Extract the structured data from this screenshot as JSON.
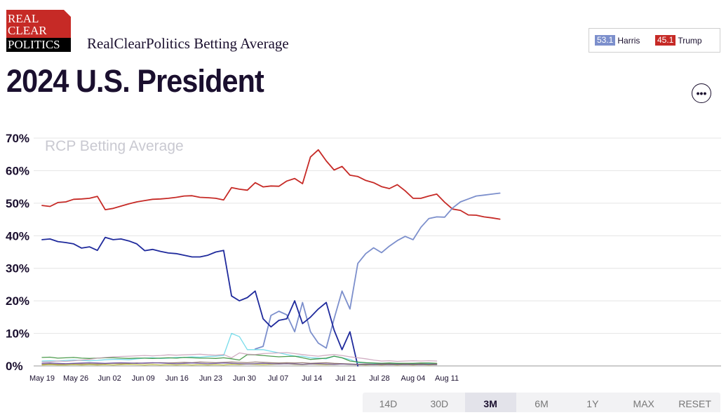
{
  "header": {
    "logo_line1": "REAL",
    "logo_line2": "CLEAR",
    "logo_line3": "POLITICS",
    "subtitle": "RealClearPolitics Betting Average",
    "title": "2024 U.S. President"
  },
  "legend": [
    {
      "value": "53.1",
      "name": "Harris",
      "color": "#7c8fcc"
    },
    {
      "value": "45.1",
      "name": "Trump",
      "color": "#c62a26"
    }
  ],
  "menu_icon": "more-horizontal-icon",
  "range_buttons": [
    {
      "label": "14D",
      "active": false
    },
    {
      "label": "30D",
      "active": false
    },
    {
      "label": "3M",
      "active": true
    },
    {
      "label": "6M",
      "active": false
    },
    {
      "label": "1Y",
      "active": false
    },
    {
      "label": "MAX",
      "active": false
    },
    {
      "label": "RESET",
      "active": false
    }
  ],
  "chart_data": {
    "type": "line",
    "watermark": "RCP Betting Average",
    "ylim": [
      0,
      70
    ],
    "yticks": [
      "0%",
      "10%",
      "20%",
      "30%",
      "40%",
      "50%",
      "60%",
      "70%"
    ],
    "xticks": [
      "May 19",
      "May 26",
      "Jun 02",
      "Jun 09",
      "Jun 16",
      "Jun 23",
      "Jun 30",
      "Jul 07",
      "Jul 14",
      "Jul 21",
      "Jul 28",
      "Aug 04",
      "Aug 11"
    ],
    "x_start": "May 19",
    "grid": true,
    "series": [
      {
        "name": "Trump",
        "color": "#c62a26",
        "values": [
          49.3,
          49,
          50.2,
          50.4,
          51.2,
          51.3,
          51.5,
          52.1,
          48,
          48.4,
          49.1,
          49.8,
          50.4,
          50.8,
          51.2,
          51.3,
          51.5,
          51.8,
          52.2,
          52.3,
          51.8,
          51.7,
          51.5,
          51,
          54.8,
          54.3,
          54,
          56.3,
          55,
          55.3,
          55.2,
          56.8,
          57.6,
          56,
          64.2,
          66.4,
          63,
          60.2,
          61.3,
          58.6,
          58.2,
          57,
          56.3,
          55.1,
          54.5,
          55.7,
          53.8,
          51.5,
          51.5,
          52.2,
          52.8,
          50.3,
          48.2,
          47.8,
          46.4,
          46.3,
          45.8,
          45.5,
          45.1
        ]
      },
      {
        "name": "Harris",
        "color": "#7c8fcc",
        "values": [
          null,
          null,
          null,
          null,
          null,
          null,
          null,
          null,
          null,
          null,
          null,
          null,
          null,
          null,
          null,
          null,
          null,
          null,
          null,
          null,
          null,
          null,
          null,
          null,
          null,
          null,
          null,
          5.2,
          6,
          15.5,
          16.8,
          15.7,
          10.5,
          19.5,
          10.5,
          7,
          5.5,
          14.5,
          23,
          17.5,
          31.5,
          34.5,
          36.3,
          34.8,
          36.8,
          38.5,
          39.8,
          38.8,
          42.6,
          45.3,
          45.8,
          45.7,
          48.5,
          50.4,
          51.3,
          52.2,
          52.5,
          52.8,
          53.1
        ]
      },
      {
        "name": "",
        "color": "#1f2a9c",
        "values": [
          38.8,
          39,
          38.2,
          37.9,
          37.5,
          36.2,
          36.6,
          35.5,
          39.5,
          38.8,
          39,
          38.4,
          37.5,
          35.4,
          35.8,
          35.2,
          34.7,
          34.5,
          34,
          33.5,
          33.5,
          34,
          35,
          35.5,
          21.5,
          20,
          21,
          23,
          14.5,
          12,
          14,
          14.5,
          20,
          13,
          15,
          17.5,
          19.5,
          11,
          5,
          10.5,
          0,
          null,
          null,
          null,
          null,
          null,
          null,
          null,
          null,
          null,
          null,
          null,
          null,
          null,
          null,
          null,
          null,
          null,
          null
        ]
      },
      {
        "name": "",
        "color": "#5fd6e6",
        "values": [
          1.5,
          1.6,
          1.5,
          1.7,
          1.8,
          1.7,
          1.6,
          1.7,
          1.9,
          2,
          2,
          1.9,
          2.2,
          2.4,
          2.5,
          2.3,
          2.4,
          2.6,
          2.6,
          2.8,
          2.7,
          2.9,
          3,
          3.2,
          10,
          9,
          5,
          5,
          5,
          4.5,
          4,
          3.5,
          3,
          3,
          2.5,
          2.4,
          2.2,
          3,
          2.5,
          2,
          1,
          1,
          0.8,
          0.8,
          0.8,
          0.7,
          0.7,
          0.6,
          0.6,
          0.7,
          0.6,
          null,
          null,
          null,
          null,
          null,
          null,
          null,
          null
        ]
      },
      {
        "name": "",
        "color": "#2e8b2e",
        "values": [
          2.6,
          2.7,
          2.4,
          2.5,
          2.6,
          2.4,
          2.3,
          2.4,
          2.5,
          2.5,
          2.4,
          2.3,
          2.4,
          2.4,
          2.3,
          2.4,
          2.5,
          2.4,
          2.6,
          2.5,
          2.4,
          2.4,
          2.3,
          2.5,
          2.2,
          1.8,
          3.5,
          3.4,
          3.2,
          3,
          2.8,
          2.9,
          3,
          2.5,
          2,
          2.2,
          2.4,
          3,
          2.5,
          1.5,
          1.2,
          1,
          0.9,
          0.8,
          0.9,
          0.8,
          0.8,
          0.8,
          0.9,
          0.9,
          0.8,
          null,
          null,
          null,
          null,
          null,
          null,
          null,
          null
        ]
      },
      {
        "name": "",
        "color": "#c9a0b8",
        "values": [
          1.2,
          1.3,
          1.5,
          1.4,
          1.6,
          1.8,
          2,
          2.4,
          2.6,
          2.8,
          2.9,
          3,
          3.1,
          3.2,
          3.1,
          3.2,
          3.4,
          3.3,
          3.4,
          3.5,
          3.6,
          3.4,
          3.3,
          3.5,
          2.5,
          4,
          3.6,
          3.5,
          3.8,
          3.9,
          4,
          4.1,
          3.8,
          3.5,
          3.2,
          3,
          3.3,
          3.5,
          3.2,
          2.8,
          2.5,
          2.2,
          1.8,
          1.5,
          1.6,
          1.4,
          1.5,
          1.6,
          1.5,
          1.6,
          1.5,
          null,
          null,
          null,
          null,
          null,
          null,
          null,
          null
        ]
      },
      {
        "name": "",
        "color": "#8d6e63",
        "values": [
          0.5,
          0.6,
          0.5,
          0.6,
          0.7,
          0.6,
          0.7,
          0.6,
          0.7,
          0.8,
          0.7,
          0.8,
          0.9,
          0.8,
          0.9,
          1,
          0.9,
          1,
          1.1,
          1,
          1.2,
          1.1,
          1,
          1.1,
          1.2,
          1.1,
          1,
          1.2,
          1.1,
          1,
          0.9,
          1,
          0.9,
          1,
          0.8,
          0.9,
          1,
          0.8,
          0.7,
          0.6,
          0.5,
          0.6,
          0.5,
          0.6,
          0.6,
          0.5,
          0.6,
          0.5,
          0.6,
          0.5,
          0.6,
          null,
          null,
          null,
          null,
          null,
          null,
          null,
          null
        ]
      },
      {
        "name": "",
        "color": "#b5b82a",
        "values": [
          0.3,
          0.4,
          0.3,
          0.3,
          0.4,
          0.3,
          0.4,
          0.3,
          0.4,
          0.3,
          0.4,
          0.5,
          0.4,
          0.3,
          0.4,
          0.3,
          0.4,
          0.3,
          0.4,
          0.3,
          0.4,
          0.3,
          0.4,
          0.3,
          0.5,
          0.4,
          0.6,
          0.5,
          0.4,
          0.5,
          0.6,
          0.7,
          0.5,
          0.4,
          0.6,
          0.5,
          0.4,
          0.5,
          0.6,
          0.5,
          0.4,
          0.3,
          0.4,
          0.3,
          0.4,
          0.3,
          0.4,
          0.3,
          0.4,
          0.3,
          0.4,
          null,
          null,
          null,
          null,
          null,
          null,
          null,
          null
        ]
      },
      {
        "name": "",
        "color": "#6a4c9c",
        "values": [
          0.8,
          0.9,
          0.8,
          0.7,
          0.8,
          0.9,
          1,
          0.9,
          0.8,
          0.9,
          1,
          0.9,
          0.8,
          0.9,
          1,
          0.9,
          0.8,
          0.7,
          0.8,
          0.9,
          0.8,
          0.7,
          0.8,
          0.9,
          0.8,
          0.7,
          0.6,
          0.7,
          0.8,
          0.7,
          0.6,
          0.7,
          0.6,
          0.5,
          0.6,
          0.7,
          0.6,
          0.5,
          0.6,
          0.5,
          0.4,
          0.5,
          0.4,
          0.5,
          0.4,
          0.5,
          0.4,
          0.5,
          0.4,
          0.5,
          0.4,
          null,
          null,
          null,
          null,
          null,
          null,
          null,
          null
        ]
      }
    ]
  }
}
